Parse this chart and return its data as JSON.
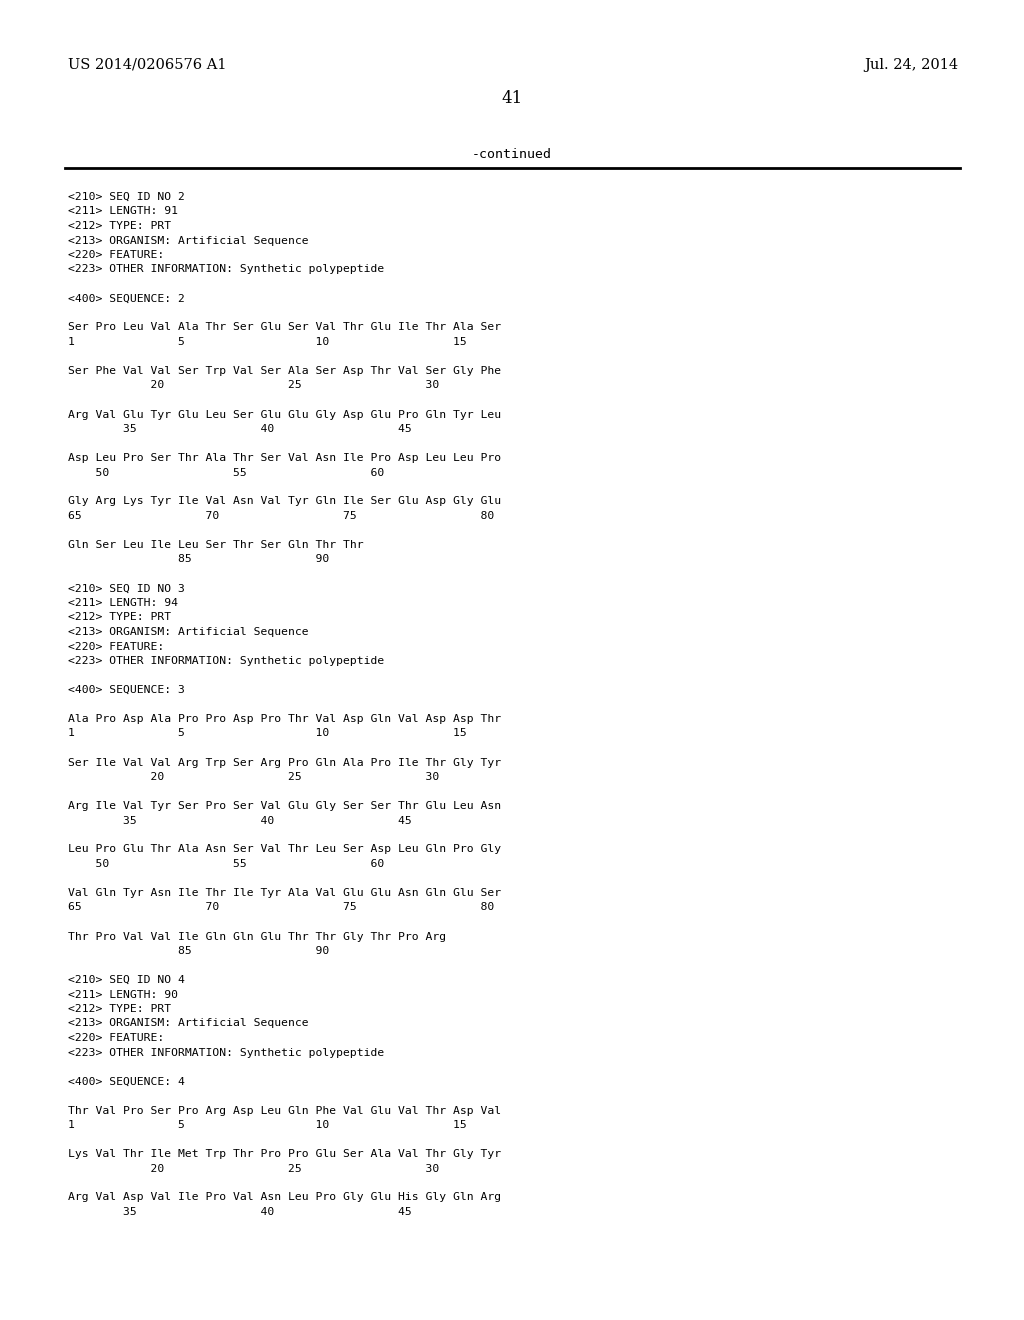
{
  "background_color": "#ffffff",
  "top_left_text": "US 2014/0206576 A1",
  "top_right_text": "Jul. 24, 2014",
  "page_number": "41",
  "continued_text": "-continued",
  "content": [
    "<210> SEQ ID NO 2",
    "<211> LENGTH: 91",
    "<212> TYPE: PRT",
    "<213> ORGANISM: Artificial Sequence",
    "<220> FEATURE:",
    "<223> OTHER INFORMATION: Synthetic polypeptide",
    "",
    "<400> SEQUENCE: 2",
    "",
    "Ser Pro Leu Val Ala Thr Ser Glu Ser Val Thr Glu Ile Thr Ala Ser",
    "1               5                   10                  15",
    "",
    "Ser Phe Val Val Ser Trp Val Ser Ala Ser Asp Thr Val Ser Gly Phe",
    "            20                  25                  30",
    "",
    "Arg Val Glu Tyr Glu Leu Ser Glu Glu Gly Asp Glu Pro Gln Tyr Leu",
    "        35                  40                  45",
    "",
    "Asp Leu Pro Ser Thr Ala Thr Ser Val Asn Ile Pro Asp Leu Leu Pro",
    "    50                  55                  60",
    "",
    "Gly Arg Lys Tyr Ile Val Asn Val Tyr Gln Ile Ser Glu Asp Gly Glu",
    "65                  70                  75                  80",
    "",
    "Gln Ser Leu Ile Leu Ser Thr Ser Gln Thr Thr",
    "                85                  90",
    "",
    "<210> SEQ ID NO 3",
    "<211> LENGTH: 94",
    "<212> TYPE: PRT",
    "<213> ORGANISM: Artificial Sequence",
    "<220> FEATURE:",
    "<223> OTHER INFORMATION: Synthetic polypeptide",
    "",
    "<400> SEQUENCE: 3",
    "",
    "Ala Pro Asp Ala Pro Pro Asp Pro Thr Val Asp Gln Val Asp Asp Thr",
    "1               5                   10                  15",
    "",
    "Ser Ile Val Val Arg Trp Ser Arg Pro Gln Ala Pro Ile Thr Gly Tyr",
    "            20                  25                  30",
    "",
    "Arg Ile Val Tyr Ser Pro Ser Val Glu Gly Ser Ser Thr Glu Leu Asn",
    "        35                  40                  45",
    "",
    "Leu Pro Glu Thr Ala Asn Ser Val Thr Leu Ser Asp Leu Gln Pro Gly",
    "    50                  55                  60",
    "",
    "Val Gln Tyr Asn Ile Thr Ile Tyr Ala Val Glu Glu Asn Gln Glu Ser",
    "65                  70                  75                  80",
    "",
    "Thr Pro Val Val Ile Gln Gln Glu Thr Thr Gly Thr Pro Arg",
    "                85                  90",
    "",
    "<210> SEQ ID NO 4",
    "<211> LENGTH: 90",
    "<212> TYPE: PRT",
    "<213> ORGANISM: Artificial Sequence",
    "<220> FEATURE:",
    "<223> OTHER INFORMATION: Synthetic polypeptide",
    "",
    "<400> SEQUENCE: 4",
    "",
    "Thr Val Pro Ser Pro Arg Asp Leu Gln Phe Val Glu Val Thr Asp Val",
    "1               5                   10                  15",
    "",
    "Lys Val Thr Ile Met Trp Thr Pro Pro Glu Ser Ala Val Thr Gly Tyr",
    "            20                  25                  30",
    "",
    "Arg Val Asp Val Ile Pro Val Asn Leu Pro Gly Glu His Gly Gln Arg",
    "        35                  40                  45"
  ]
}
